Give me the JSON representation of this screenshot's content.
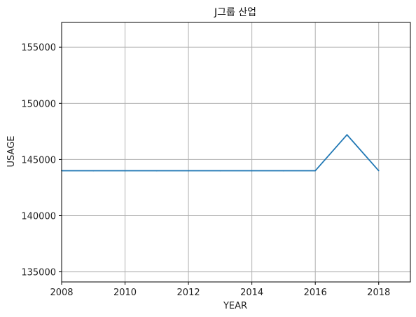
{
  "chart_data": {
    "type": "line",
    "title": "J그룹 산업",
    "xlabel": "YEAR",
    "ylabel": "USAGE",
    "x": [
      2008,
      2009,
      2010,
      2011,
      2012,
      2013,
      2014,
      2015,
      2016,
      2017,
      2018
    ],
    "series": [
      {
        "values": [
          144000,
          144000,
          144000,
          144000,
          144000,
          144000,
          144000,
          144000,
          144000,
          147200,
          144000
        ]
      }
    ],
    "xlim": [
      2008,
      2019
    ],
    "ylim": [
      134100,
      157200
    ],
    "xticks": [
      2008,
      2010,
      2012,
      2014,
      2016,
      2018
    ],
    "yticks": [
      135000,
      140000,
      145000,
      150000,
      155000
    ],
    "grid": true,
    "colors": {
      "line": "#1f77b4",
      "grid": "#b0b0b0",
      "spine": "#000000"
    }
  }
}
